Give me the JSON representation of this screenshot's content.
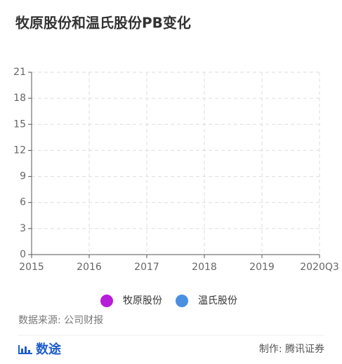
{
  "chart_data": {
    "type": "line",
    "title": "牧原股份和温氏股份PB变化",
    "categories": [
      "2015",
      "2016",
      "2017",
      "2018",
      "2019",
      "2020Q3"
    ],
    "series": [
      {
        "name": "牧原股份",
        "color": "#b61ed8",
        "values": [
          null,
          null,
          null,
          null,
          null,
          null
        ]
      },
      {
        "name": "温氏股份",
        "color": "#4a8fe2",
        "values": [
          null,
          null,
          null,
          null,
          null,
          null
        ]
      }
    ],
    "ylim": [
      0,
      21
    ],
    "yticks": [
      0,
      3,
      6,
      9,
      12,
      15,
      18,
      21
    ],
    "grid": true,
    "legend": "bottom",
    "source": "数据来源: 公司财报",
    "brand": "数途",
    "credit": "制作: 腾讯证券"
  }
}
